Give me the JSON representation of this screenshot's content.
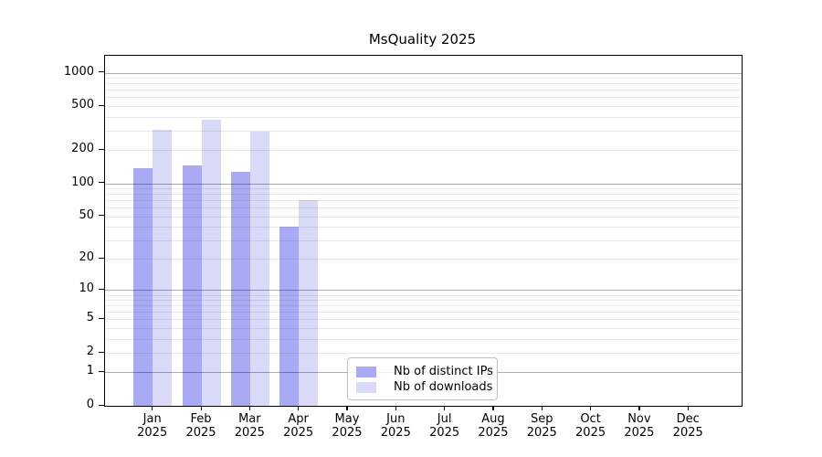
{
  "chart_data": {
    "type": "bar",
    "title": "MsQuality 2025",
    "x": {
      "categories": [
        "Jan",
        "Feb",
        "Mar",
        "Apr",
        "May",
        "Jun",
        "Jul",
        "Aug",
        "Sep",
        "Oct",
        "Nov",
        "Dec"
      ],
      "year": "2025"
    },
    "y_axis": {
      "scale": "log1p",
      "ymax": 1000,
      "tick_labels": [
        1000,
        500,
        200,
        100,
        50,
        20,
        10,
        5,
        2,
        1,
        0
      ],
      "major_gridlines": [
        1,
        10,
        100,
        1000
      ],
      "minor_gridlines": [
        2,
        3,
        4,
        5,
        6,
        7,
        8,
        9,
        20,
        30,
        40,
        50,
        60,
        70,
        80,
        90,
        200,
        300,
        400,
        500,
        600,
        700,
        800,
        900
      ]
    },
    "series": [
      {
        "name": "Nb of distinct IPs",
        "color": "#a9a9f4",
        "values": [
          138,
          145,
          127,
          40,
          0,
          0,
          0,
          0,
          0,
          0,
          0,
          0
        ]
      },
      {
        "name": "Nb of downloads",
        "color": "#d9d9f8",
        "values": [
          308,
          374,
          296,
          70,
          0,
          0,
          0,
          0,
          0,
          0,
          0,
          0
        ]
      }
    ],
    "legend": {
      "entries": [
        "Nb of distinct IPs",
        "Nb of downloads"
      ],
      "position": "bottom-center"
    }
  },
  "colors": {
    "bar_distinct_ips": "#a9a9f4",
    "bar_downloads": "#d9d9f8",
    "grid_major": "rgba(0,0,0,0.32)",
    "grid_minor": "rgba(0,0,0,0.085)",
    "axis": "#000000",
    "legend_border": "#bfbfbf",
    "background": "#ffffff"
  }
}
